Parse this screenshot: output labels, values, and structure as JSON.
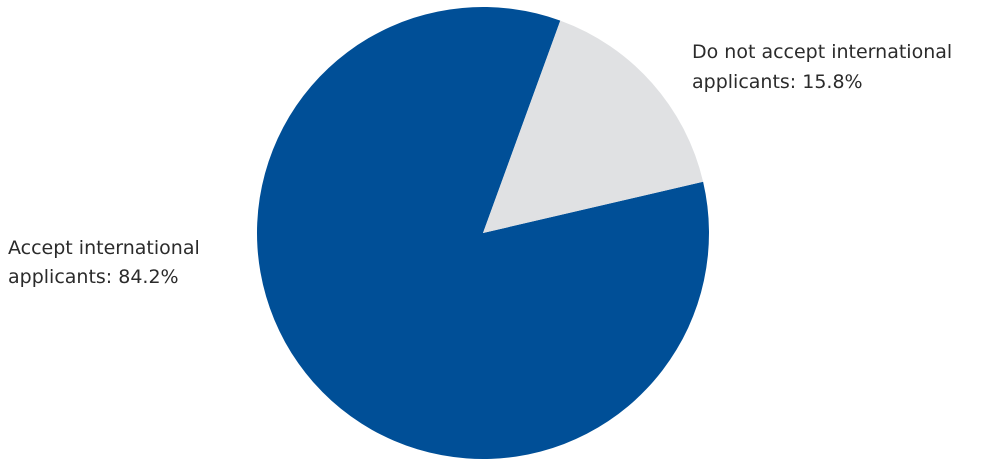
{
  "chart_data": {
    "type": "pie",
    "title": "",
    "slices": [
      {
        "label_line1": "Accept international",
        "label_line2": "applicants: 84.2%",
        "value": 84.2,
        "color": "#004f97"
      },
      {
        "label_line1": "Do not accept international",
        "label_line2": "applicants: 15.8%",
        "value": 15.8,
        "color": "#e0e1e3"
      }
    ]
  }
}
